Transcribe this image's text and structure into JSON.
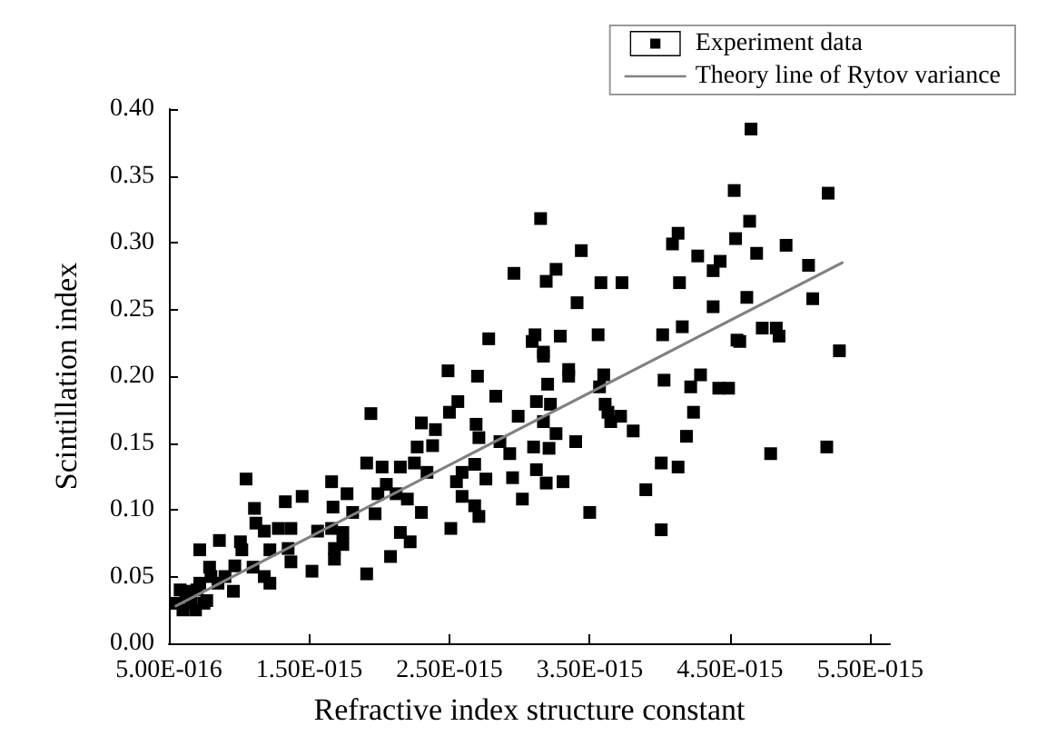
{
  "chart_data": {
    "type": "scatter",
    "xlabel": "Refractive index structure constant",
    "ylabel": "Scintillation index",
    "xlim": [
      5e-16,
      5.64e-15
    ],
    "xticks": [
      {
        "value": 5e-16,
        "label": "5.00E-016"
      },
      {
        "value": 1.5e-15,
        "label": "1.50E-015"
      },
      {
        "value": 2.5e-15,
        "label": "2.50E-015"
      },
      {
        "value": 3.5e-15,
        "label": "3.50E-015"
      },
      {
        "value": 4.5e-15,
        "label": "4.50E-015"
      },
      {
        "value": 5.5e-15,
        "label": "5.50E-015"
      }
    ],
    "ylim": [
      0,
      0.4
    ],
    "yticks": [
      {
        "value": 0,
        "label": "0.00"
      },
      {
        "value": 0.05,
        "label": "0.05"
      },
      {
        "value": 0.1,
        "label": "0.10"
      },
      {
        "value": 0.15,
        "label": "0.15"
      },
      {
        "value": 0.2,
        "label": "0.20"
      },
      {
        "value": 0.25,
        "label": "0.25"
      },
      {
        "value": 0.3,
        "label": "0.30"
      },
      {
        "value": 0.35,
        "label": "0.35"
      },
      {
        "value": 0.4,
        "label": "0.40"
      }
    ],
    "grid": false,
    "legend": "top right",
    "series": [
      {
        "name": "Experiment data",
        "marker": "square",
        "color": "#000000",
        "x": [
          4.65e-15,
          4.53e-15,
          5.2e-15,
          3.15e-15,
          4.64e-15,
          4.13e-15,
          4.09e-15,
          4.54e-15,
          4.9e-15,
          3.44e-15,
          4.27e-15,
          4.69e-15,
          4.43e-15,
          4.38e-15,
          3.26e-15,
          3.19e-15,
          3.58e-15,
          3.73e-15,
          4.14e-15,
          5.06e-15,
          3.41e-15,
          4.62e-15,
          5.09e-15,
          4.38e-15,
          3.11e-15,
          3.29e-15,
          3.56e-15,
          4.02e-15,
          4.16e-15,
          4.55e-15,
          4.73e-15,
          4.83e-15,
          4.85e-15,
          5.28e-15,
          2.96e-15,
          2.78e-15,
          3.09e-15,
          3.17e-15,
          4.57e-15,
          3.35e-15,
          3.35e-15,
          3.6e-15,
          3.57e-15,
          4.03e-15,
          4.29e-15,
          4.22e-15,
          4.42e-15,
          4.49e-15,
          3.2e-15,
          3.12e-15,
          3.22e-15,
          3.61e-15,
          3.63e-15,
          3.72e-15,
          3.65e-15,
          4.24e-15,
          3.17e-15,
          3.26e-15,
          3.81e-15,
          4.19e-15,
          3.4e-15,
          3.1e-15,
          3.21e-15,
          4.79e-15,
          5.19e-15,
          4.01e-15,
          4.13e-15,
          3.12e-15,
          3.19e-15,
          3.31e-15,
          3.9e-15,
          3.5e-15,
          4.01e-15,
          3.17e-15,
          2.49e-15,
          2.7e-15,
          2.83e-15,
          2.56e-15,
          1.94e-15,
          2.99e-15,
          2.3e-15,
          2.4e-15,
          2.69e-15,
          2.5e-15,
          2.71e-15,
          2.86e-15,
          2.93e-15,
          2.27e-15,
          2.38e-15,
          1.91e-15,
          2.02e-15,
          2.15e-15,
          2.25e-15,
          2.34e-15,
          2.59e-15,
          2.68e-15,
          2.76e-15,
          2.95e-15,
          1.05e-15,
          1.66e-15,
          1.77e-15,
          2.05e-15,
          1.99e-15,
          2.12e-15,
          2.2e-15,
          2.55e-15,
          2.59e-15,
          2.68e-15,
          2.71e-15,
          3.02e-15,
          1.33e-15,
          1.45e-15,
          1.11e-15,
          1.67e-15,
          1.81e-15,
          1.97e-15,
          2.3e-15,
          1.12e-15,
          1.18e-15,
          1.28e-15,
          1.37e-15,
          1.56e-15,
          1.66e-15,
          1.74e-15,
          2.15e-15,
          2.22e-15,
          2.51e-15,
          8.6e-16,
          1.01e-15,
          7.2e-16,
          1.02e-15,
          1.22e-15,
          1.35e-15,
          1.68e-15,
          1.74e-15,
          1.37e-15,
          1.52e-15,
          1.68e-15,
          1.91e-15,
          2.08e-15,
          9.7e-16,
          1.1e-15,
          1.18e-15,
          1.22e-15,
          7.9e-16,
          8.5e-16,
          9.6e-16,
          7.2e-16,
          6.5e-16,
          7.7e-16,
          6.9e-16,
          5.5e-16,
          6e-16,
          6.2e-16,
          7e-16,
          7.5e-16,
          8e-16,
          9e-16,
          5.8e-16,
          6.6e-16
        ],
        "values": [
          0.385,
          0.339,
          0.337,
          0.318,
          0.316,
          0.307,
          0.299,
          0.303,
          0.298,
          0.294,
          0.29,
          0.292,
          0.286,
          0.279,
          0.28,
          0.271,
          0.27,
          0.27,
          0.27,
          0.283,
          0.255,
          0.259,
          0.258,
          0.252,
          0.231,
          0.23,
          0.231,
          0.231,
          0.237,
          0.227,
          0.236,
          0.236,
          0.23,
          0.219,
          0.277,
          0.228,
          0.226,
          0.218,
          0.226,
          0.205,
          0.2,
          0.201,
          0.192,
          0.197,
          0.201,
          0.192,
          0.191,
          0.191,
          0.194,
          0.181,
          0.179,
          0.179,
          0.173,
          0.17,
          0.166,
          0.173,
          0.166,
          0.157,
          0.159,
          0.155,
          0.151,
          0.147,
          0.146,
          0.142,
          0.147,
          0.135,
          0.132,
          0.13,
          0.12,
          0.121,
          0.115,
          0.098,
          0.085,
          0.215,
          0.204,
          0.2,
          0.185,
          0.181,
          0.172,
          0.17,
          0.165,
          0.16,
          0.164,
          0.173,
          0.154,
          0.151,
          0.142,
          0.147,
          0.148,
          0.135,
          0.132,
          0.132,
          0.135,
          0.128,
          0.128,
          0.134,
          0.123,
          0.124,
          0.123,
          0.121,
          0.112,
          0.119,
          0.112,
          0.112,
          0.108,
          0.121,
          0.11,
          0.103,
          0.095,
          0.108,
          0.106,
          0.11,
          0.101,
          0.102,
          0.098,
          0.097,
          0.098,
          0.09,
          0.084,
          0.086,
          0.086,
          0.084,
          0.086,
          0.083,
          0.083,
          0.076,
          0.086,
          0.077,
          0.076,
          0.07,
          0.07,
          0.07,
          0.071,
          0.071,
          0.074,
          0.061,
          0.054,
          0.063,
          0.052,
          0.065,
          0.058,
          0.057,
          0.05,
          0.045,
          0.057,
          0.045,
          0.039,
          0.045,
          0.039,
          0.032,
          0.025,
          0.03,
          0.025,
          0.035,
          0.04,
          0.03,
          0.05,
          0.05,
          0.04,
          0.03
        ]
      },
      {
        "name": "Theory line of Rytov variance",
        "type": "line",
        "marker": "none",
        "line_style": "solid",
        "color": "#808080",
        "x": [
          5.5e-16,
          5.3e-15
        ],
        "values": [
          0.028,
          0.285
        ]
      }
    ]
  }
}
